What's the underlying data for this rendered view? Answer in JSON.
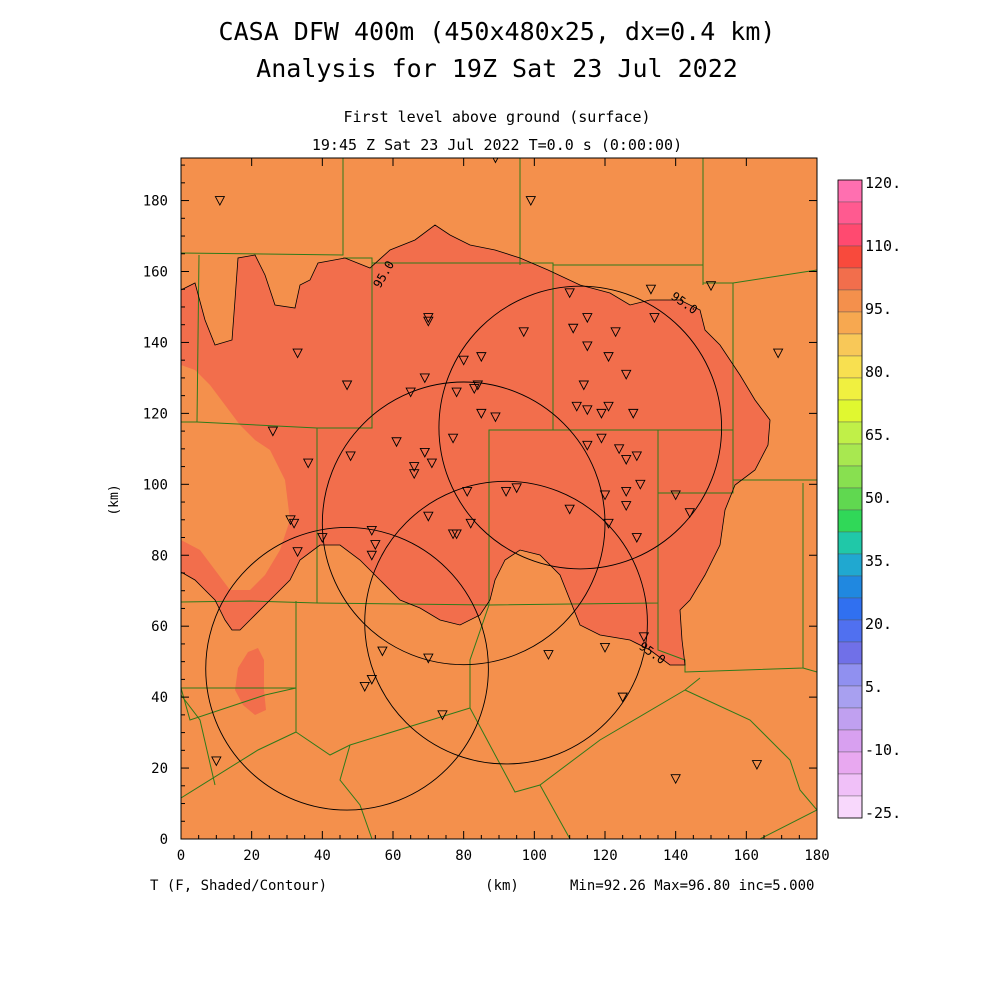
{
  "title_line1": "CASA DFW 400m (450x480x25, dx=0.4 km)",
  "title_line2": "Analysis for 19Z Sat 23 Jul 2022",
  "subtitle_line1": "First level above ground (surface)",
  "subtitle_line2": "19:45 Z Sat 23 Jul 2022   T=0.0 s (0:00:00)",
  "footer_left": "T (F, Shaded/Contour)",
  "footer_center": "(km)",
  "footer_right": "Min=92.26 Max=96.80 inc=5.000",
  "contour_label": "95.0",
  "colors": {
    "shade_90_95": "#f4904c",
    "shade_95_100": "#f26e4c",
    "boundary": "#2f7a1a",
    "radar_ring": "#000000",
    "station": "#000000"
  },
  "chart_data": {
    "type": "heatmap",
    "variable": "T (F)",
    "xlabel": "(km)",
    "ylabel": "(km)",
    "xlim": [
      0,
      180
    ],
    "ylim": [
      0,
      192
    ],
    "x_ticks": [
      "0",
      "20",
      "40",
      "60",
      "80",
      "100",
      "120",
      "140",
      "160",
      "180"
    ],
    "y_ticks": [
      "0",
      "20",
      "40",
      "60",
      "80",
      "100",
      "120",
      "140",
      "160",
      "180"
    ],
    "min": 92.26,
    "max": 96.8,
    "inc": 5.0,
    "contour_levels": [
      95.0
    ],
    "colorbar_labels": [
      "120.",
      "110.",
      "95.",
      "80.",
      "65.",
      "50.",
      "35.",
      "20.",
      "5.",
      "-10.",
      "-25."
    ],
    "colorbar_colors": [
      "#ff6fb0",
      "#ff5a90",
      "#ff4a70",
      "#f84a3c",
      "#f26e4c",
      "#f4904c",
      "#f7a850",
      "#f8c858",
      "#f8e050",
      "#f0f040",
      "#e0f830",
      "#c0f048",
      "#a8e850",
      "#88e050",
      "#60d850",
      "#30d858",
      "#20c8a8",
      "#20a8d0",
      "#2088e0",
      "#3070f0",
      "#5070f0",
      "#7070e8",
      "#9090f0",
      "#a8a0f0",
      "#c0a0f0",
      "#d8a0f0",
      "#e8a8f0",
      "#f0c0f8",
      "#f8d8fc"
    ],
    "radar_circles_km": [
      {
        "cx": 113,
        "cy": 116,
        "r": 40
      },
      {
        "cx": 80,
        "cy": 89,
        "r": 40
      },
      {
        "cx": 92,
        "cy": 61,
        "r": 40
      },
      {
        "cx": 47,
        "cy": 48,
        "r": 40
      }
    ],
    "stations_km": [
      [
        11,
        180
      ],
      [
        89,
        192
      ],
      [
        99,
        180
      ],
      [
        150,
        156
      ],
      [
        169,
        137
      ],
      [
        110,
        154
      ],
      [
        133,
        155
      ],
      [
        134,
        147
      ],
      [
        111,
        144
      ],
      [
        115,
        147
      ],
      [
        123,
        143
      ],
      [
        97,
        143
      ],
      [
        70,
        147
      ],
      [
        70,
        146
      ],
      [
        33,
        137
      ],
      [
        80,
        135
      ],
      [
        85,
        136
      ],
      [
        115,
        139
      ],
      [
        121,
        136
      ],
      [
        126,
        131
      ],
      [
        47,
        128
      ],
      [
        65,
        126
      ],
      [
        69,
        130
      ],
      [
        78,
        126
      ],
      [
        83,
        127
      ],
      [
        84,
        128
      ],
      [
        114,
        128
      ],
      [
        112,
        122
      ],
      [
        115,
        121
      ],
      [
        119,
        120
      ],
      [
        121,
        122
      ],
      [
        128,
        120
      ],
      [
        85,
        120
      ],
      [
        89,
        119
      ],
      [
        26,
        115
      ],
      [
        36,
        106
      ],
      [
        48,
        108
      ],
      [
        61,
        112
      ],
      [
        66,
        103
      ],
      [
        66,
        105
      ],
      [
        69,
        109
      ],
      [
        71,
        106
      ],
      [
        77,
        113
      ],
      [
        115,
        111
      ],
      [
        119,
        113
      ],
      [
        124,
        110
      ],
      [
        126,
        107
      ],
      [
        129,
        108
      ],
      [
        130,
        100
      ],
      [
        126,
        98
      ],
      [
        126,
        94
      ],
      [
        120,
        97
      ],
      [
        121,
        89
      ],
      [
        129,
        85
      ],
      [
        110,
        93
      ],
      [
        92,
        98
      ],
      [
        95,
        99
      ],
      [
        81,
        98
      ],
      [
        82,
        89
      ],
      [
        78,
        86
      ],
      [
        77,
        86
      ],
      [
        70,
        91
      ],
      [
        140,
        97
      ],
      [
        144,
        92
      ],
      [
        31,
        90
      ],
      [
        32,
        89
      ],
      [
        33,
        81
      ],
      [
        40,
        85
      ],
      [
        54,
        87
      ],
      [
        55,
        83
      ],
      [
        54,
        80
      ],
      [
        57,
        53
      ],
      [
        54,
        45
      ],
      [
        52,
        43
      ],
      [
        70,
        51
      ],
      [
        74,
        35
      ],
      [
        104,
        52
      ],
      [
        120,
        54
      ],
      [
        131,
        57
      ],
      [
        125,
        40
      ],
      [
        140,
        17
      ],
      [
        163,
        21
      ],
      [
        10,
        22
      ]
    ]
  }
}
